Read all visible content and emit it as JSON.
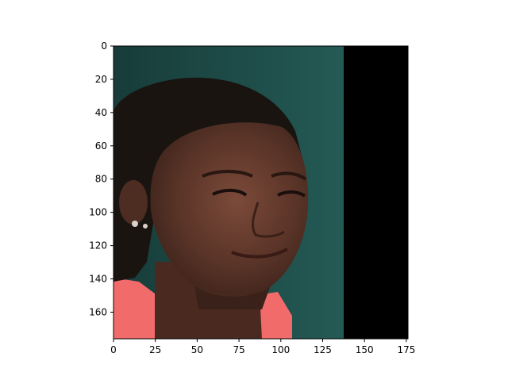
{
  "figure": {
    "background": "#ffffff"
  },
  "image": {
    "subject": "cropped portrait of a young woman's face with hair pulled back, small earrings, and a coral/pink top; dark green background on the left, black panel on the right",
    "colors": {
      "background_green": "#1f4f4b",
      "right_panel": "#000000",
      "hair": "#1a1411",
      "skin": "#5b3528",
      "skin_highlight": "#7b4a3a",
      "shirt": "#f26b6b",
      "earring": "#d9d2c8"
    }
  },
  "axes": {
    "x": {
      "min": 0,
      "max": 176,
      "ticks": [
        0,
        25,
        50,
        75,
        100,
        125,
        150,
        175
      ],
      "tick_labels": [
        "0",
        "25",
        "50",
        "75",
        "100",
        "125",
        "150",
        "175"
      ]
    },
    "y": {
      "min": 0,
      "max": 176,
      "inverted": true,
      "ticks": [
        0,
        20,
        40,
        60,
        80,
        100,
        120,
        140,
        160
      ],
      "tick_labels": [
        "0",
        "20",
        "40",
        "60",
        "80",
        "100",
        "120",
        "140",
        "160"
      ]
    }
  }
}
